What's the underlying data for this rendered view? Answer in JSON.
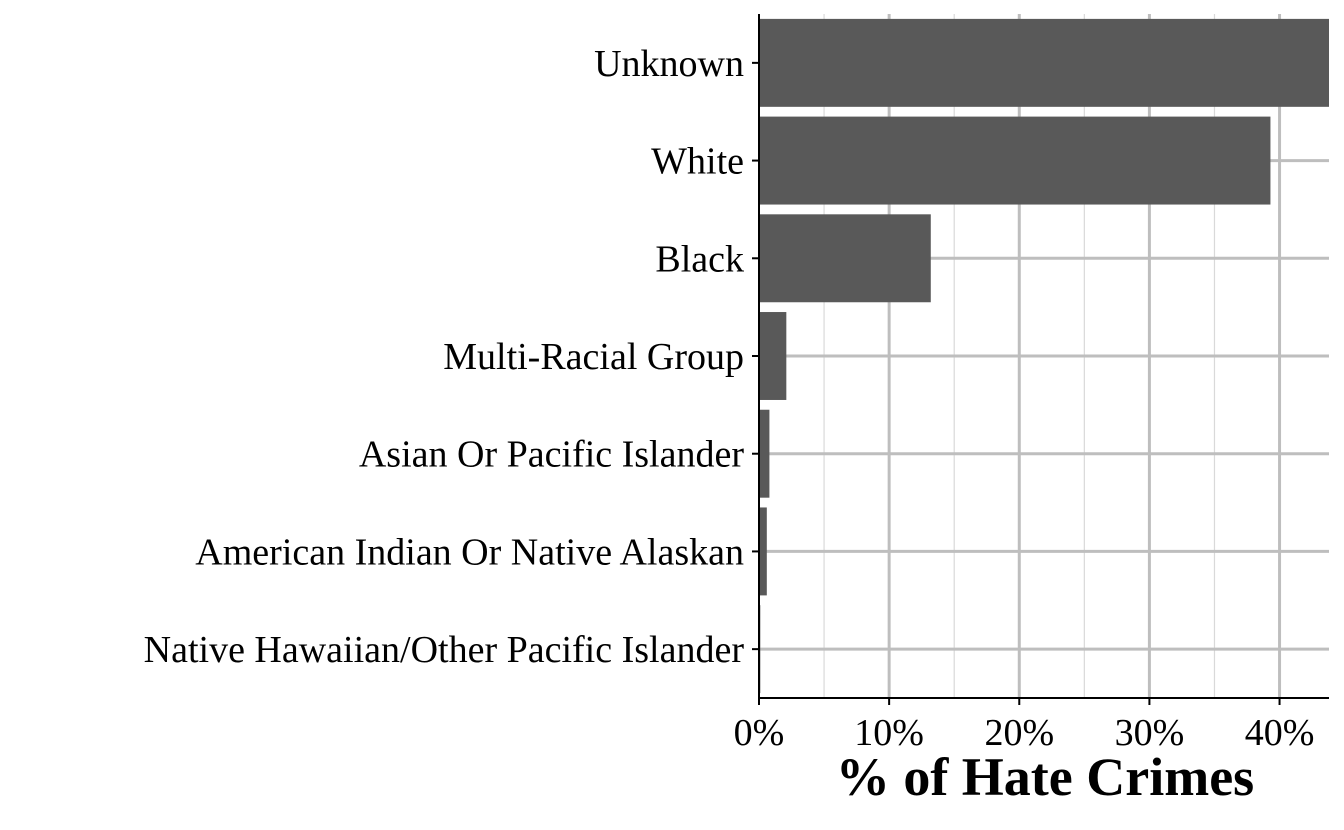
{
  "chart_data": {
    "type": "bar",
    "orientation": "horizontal",
    "categories": [
      "Unknown",
      "White",
      "Black",
      "Multi-Racial Group",
      "Asian Or Pacific Islander",
      "American Indian Or Native Alaskan",
      "Native Hawaiian/Other Pacific Islander"
    ],
    "values": [
      43.8,
      39.3,
      13.2,
      2.1,
      0.8,
      0.6,
      0.1
    ],
    "xlabel": "% of Hate Crimes",
    "ylabel": "",
    "title": "",
    "xlim": [
      0,
      43.8
    ],
    "xticks": [
      0,
      10,
      20,
      30,
      40
    ],
    "xtick_labels": [
      "0%",
      "10%",
      "20%",
      "30%",
      "40%"
    ],
    "grid": true,
    "legend": "none",
    "colors": {
      "bar": "#595959",
      "grid_major": "#bebebe",
      "grid_minor": "#d9d9d9",
      "axis": "#000000",
      "background": "#ffffff"
    }
  }
}
